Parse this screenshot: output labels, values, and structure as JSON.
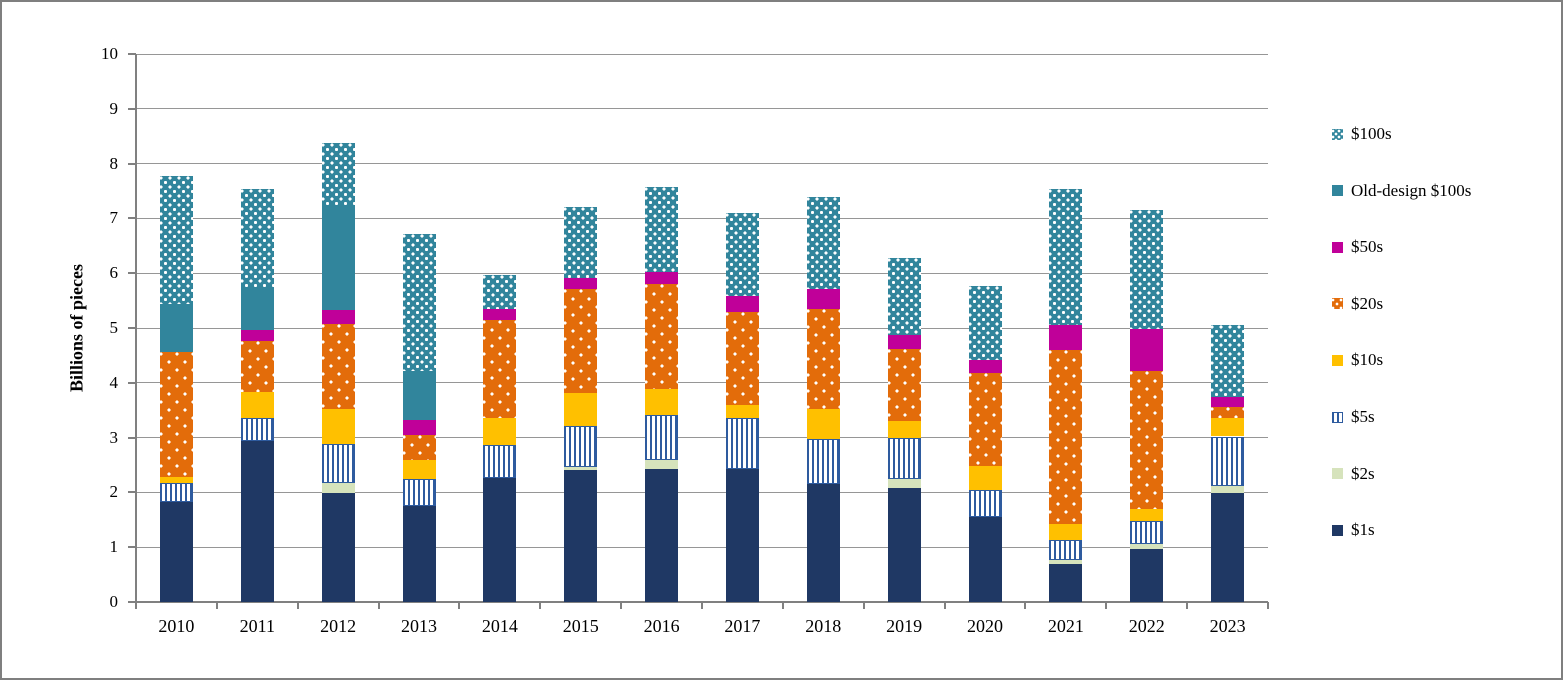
{
  "chart_data": {
    "type": "bar",
    "stacked": true,
    "title": "",
    "ylabel": "Billions of pieces",
    "xlabel": "",
    "ylim": [
      0,
      10
    ],
    "yticks": [
      0,
      1,
      2,
      3,
      4,
      5,
      6,
      7,
      8,
      9,
      10
    ],
    "grid": true,
    "legend_position": "right",
    "categories": [
      "2010",
      "2011",
      "2012",
      "2013",
      "2014",
      "2015",
      "2016",
      "2017",
      "2018",
      "2019",
      "2020",
      "2021",
      "2022",
      "2023"
    ],
    "series": [
      {
        "name": "$1s",
        "color": "#1F3864",
        "pattern": "solid",
        "values": [
          1.83,
          2.93,
          1.98,
          1.76,
          2.26,
          2.4,
          2.43,
          2.43,
          2.16,
          2.08,
          1.55,
          0.7,
          0.96,
          1.99
        ]
      },
      {
        "name": "$2s",
        "color": "#D6E3BC",
        "pattern": "solid",
        "values": [
          0,
          0,
          0.2,
          0,
          0,
          0.06,
          0.17,
          0,
          0,
          0.17,
          0,
          0.06,
          0.09,
          0.12
        ]
      },
      {
        "name": "$5s",
        "color": "#2E5B9F",
        "pattern": "vstripes",
        "values": [
          0.34,
          0.43,
          0.7,
          0.49,
          0.61,
          0.76,
          0.81,
          0.92,
          0.82,
          0.74,
          0.49,
          0.38,
          0.42,
          0.91
        ]
      },
      {
        "name": "$10s",
        "color": "#FFC000",
        "pattern": "solid",
        "values": [
          0.11,
          0.48,
          0.65,
          0.34,
          0.49,
          0.6,
          0.47,
          0.24,
          0.55,
          0.31,
          0.44,
          0.29,
          0.23,
          0.34
        ]
      },
      {
        "name": "$20s",
        "color": "#E36C0A",
        "pattern": "dots-sparse",
        "values": [
          2.29,
          0.92,
          1.54,
          0.45,
          1.78,
          1.9,
          1.92,
          1.7,
          1.82,
          1.32,
          1.69,
          3.16,
          2.51,
          0.19
        ]
      },
      {
        "name": "$50s",
        "color": "#C00099",
        "pattern": "solid",
        "values": [
          0,
          0.2,
          0.26,
          0.28,
          0.21,
          0.19,
          0.23,
          0.29,
          0.36,
          0.26,
          0.25,
          0.47,
          0.77,
          0.19
        ]
      },
      {
        "name": "Old-design $100s",
        "color": "#31859C",
        "pattern": "solid",
        "values": [
          0.86,
          0.77,
          1.92,
          0.89,
          0,
          0,
          0,
          0,
          0,
          0,
          0,
          0,
          0,
          0
        ]
      },
      {
        "name": "$100s",
        "color": "#31859C",
        "pattern": "dots-dense",
        "values": [
          2.34,
          1.81,
          1.13,
          2.51,
          0.61,
          1.3,
          1.54,
          1.51,
          1.68,
          1.4,
          1.34,
          2.48,
          2.17,
          1.32
        ]
      }
    ],
    "legend_items_top_to_bottom": [
      "$100s",
      "Old-design $100s",
      "$50s",
      "$20s",
      "$10s",
      "$5s",
      "$2s",
      "$1s"
    ],
    "colors": {
      "background": "#FFFFFF",
      "gridline": "#969696",
      "axis": "#808080",
      "outer_border": "#7F7F7F",
      "text": "#000000"
    }
  }
}
